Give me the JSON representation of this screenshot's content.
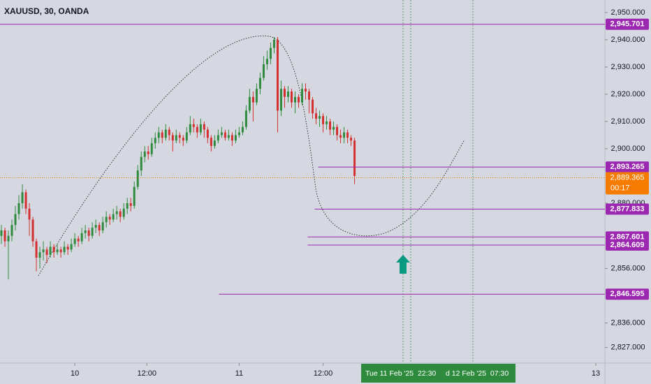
{
  "chart_data": {
    "type": "candlestick",
    "title": "XAUUSD, 30, OANDA",
    "open": [
      2868,
      2870,
      2866,
      2868,
      2872,
      2876,
      2880,
      2884,
      2878,
      2874,
      2866,
      2860,
      2862,
      2863,
      2861,
      2864,
      2862,
      2863,
      2862,
      2864,
      2863,
      2865,
      2867,
      2866,
      2869,
      2870,
      2868,
      2871,
      2872,
      2870,
      2873,
      2875,
      2874,
      2876,
      2877,
      2875,
      2878,
      2880,
      2879,
      2886,
      2892,
      2897,
      2899,
      2898,
      2902,
      2904,
      2906,
      2904,
      2907,
      2905,
      2903,
      2905,
      2904,
      2903,
      2906,
      2909,
      2908,
      2906,
      2909,
      2907,
      2904,
      2901,
      2903,
      2905,
      2906,
      2904,
      2905,
      2903,
      2905,
      2906,
      2908,
      2914,
      2919,
      2917,
      2922,
      2926,
      2931,
      2933,
      2937,
      2940,
      2914,
      2922,
      2919,
      2921,
      2917,
      2919,
      2917,
      2922,
      2921,
      2918,
      2913,
      2911,
      2912,
      2909,
      2910,
      2907,
      2908,
      2905,
      2904,
      2906,
      2904,
      2903
    ],
    "high": [
      2872,
      2871,
      2870,
      2874,
      2879,
      2883,
      2887,
      2885,
      2880,
      2875,
      2867,
      2864,
      2866,
      2864,
      2866,
      2865,
      2865,
      2864,
      2866,
      2865,
      2867,
      2869,
      2868,
      2871,
      2872,
      2871,
      2873,
      2874,
      2873,
      2875,
      2877,
      2876,
      2878,
      2879,
      2878,
      2880,
      2882,
      2882,
      2888,
      2894,
      2899,
      2901,
      2901,
      2904,
      2906,
      2908,
      2907,
      2909,
      2908,
      2906,
      2907,
      2906,
      2905,
      2908,
      2912,
      2911,
      2909,
      2911,
      2910,
      2908,
      2905,
      2905,
      2907,
      2908,
      2907,
      2907,
      2906,
      2907,
      2908,
      2910,
      2916,
      2922,
      2921,
      2924,
      2928,
      2934,
      2936,
      2939,
      2941,
      2941,
      2925,
      2923,
      2923,
      2922,
      2921,
      2920,
      2924,
      2924,
      2922,
      2919,
      2915,
      2914,
      2913,
      2912,
      2911,
      2910,
      2909,
      2907,
      2908,
      2907,
      2905,
      2904
    ],
    "low": [
      2865,
      2864,
      2852,
      2866,
      2870,
      2874,
      2878,
      2876,
      2868,
      2864,
      2855,
      2856,
      2859,
      2858,
      2860,
      2860,
      2861,
      2860,
      2861,
      2861,
      2862,
      2864,
      2864,
      2865,
      2867,
      2866,
      2867,
      2869,
      2868,
      2869,
      2871,
      2872,
      2873,
      2874,
      2873,
      2874,
      2876,
      2877,
      2878,
      2885,
      2890,
      2895,
      2896,
      2897,
      2900,
      2902,
      2902,
      2903,
      2903,
      2899,
      2902,
      2902,
      2901,
      2902,
      2905,
      2906,
      2904,
      2905,
      2904,
      2902,
      2899,
      2900,
      2902,
      2904,
      2903,
      2903,
      2901,
      2902,
      2904,
      2905,
      2907,
      2913,
      2910,
      2916,
      2920,
      2925,
      2929,
      2931,
      2935,
      2906,
      2912,
      2915,
      2917,
      2915,
      2913,
      2915,
      2916,
      2918,
      2913,
      2911,
      2909,
      2908,
      2906,
      2907,
      2905,
      2905,
      2903,
      2902,
      2902,
      2902,
      2901,
      2887
    ],
    "close": [
      2870,
      2866,
      2868,
      2872,
      2876,
      2880,
      2884,
      2878,
      2874,
      2866,
      2860,
      2862,
      2863,
      2861,
      2864,
      2862,
      2863,
      2862,
      2864,
      2863,
      2865,
      2867,
      2866,
      2869,
      2870,
      2868,
      2871,
      2872,
      2870,
      2873,
      2875,
      2874,
      2876,
      2877,
      2875,
      2878,
      2880,
      2879,
      2886,
      2892,
      2897,
      2899,
      2898,
      2902,
      2904,
      2906,
      2904,
      2907,
      2905,
      2903,
      2905,
      2904,
      2903,
      2906,
      2909,
      2908,
      2906,
      2909,
      2907,
      2904,
      2901,
      2903,
      2905,
      2906,
      2904,
      2905,
      2903,
      2905,
      2906,
      2908,
      2914,
      2919,
      2917,
      2922,
      2926,
      2931,
      2933,
      2937,
      2940,
      2914,
      2922,
      2919,
      2921,
      2917,
      2919,
      2917,
      2922,
      2921,
      2918,
      2913,
      2911,
      2912,
      2909,
      2910,
      2907,
      2908,
      2905,
      2904,
      2906,
      2904,
      2903,
      2890
    ],
    "up_color": "#2e8b3e",
    "down_color": "#d32f2f",
    "xlim": [
      -0.4,
      172.6
    ],
    "xticks": [
      {
        "value": 21,
        "label": "10"
      },
      {
        "value": 41.6,
        "label": "12:00"
      },
      {
        "value": 68,
        "label": "11"
      },
      {
        "value": 92,
        "label": "12:00"
      },
      {
        "value": 170,
        "label": "13"
      }
    ],
    "ylim": [
      2821.3,
      2954.6
    ],
    "yticks": [
      {
        "value": 2950,
        "label": "2,950.000"
      },
      {
        "value": 2940,
        "label": "2,940.000"
      },
      {
        "value": 2930,
        "label": "2,930.000"
      },
      {
        "value": 2920,
        "label": "2,920.000"
      },
      {
        "value": 2910,
        "label": "2,910.000"
      },
      {
        "value": 2900,
        "label": "2,900.000"
      },
      {
        "value": 2880,
        "label": "2,880.000"
      },
      {
        "value": 2856,
        "label": "2,856.000"
      },
      {
        "value": 2836,
        "label": "2,836.000"
      },
      {
        "value": 2827,
        "label": "2,827.000"
      }
    ],
    "level_color": "#9c27b0",
    "levels": [
      {
        "value": 2945.701,
        "label": "2,945.701"
      },
      {
        "value": 2893.265,
        "label": "2,893.265",
        "from": 90.6
      },
      {
        "value": 2877.833,
        "label": "2,877.833",
        "from": 89.6
      },
      {
        "value": 2867.601,
        "label": "2,867.601",
        "from": 87.6
      },
      {
        "value": 2864.609,
        "label": "2,864.609",
        "from": 87.6
      },
      {
        "value": 2846.595,
        "label": "2,846.595",
        "from": 62.2
      }
    ],
    "price_color": "#f57c00",
    "current_price": {
      "value": 2889.365,
      "label": "2,889.365",
      "countdown": "00:17"
    },
    "crosshair_labels": [
      "Tue 11 Feb '25  22:30",
      "d 12 Feb '25  07:30"
    ]
  }
}
